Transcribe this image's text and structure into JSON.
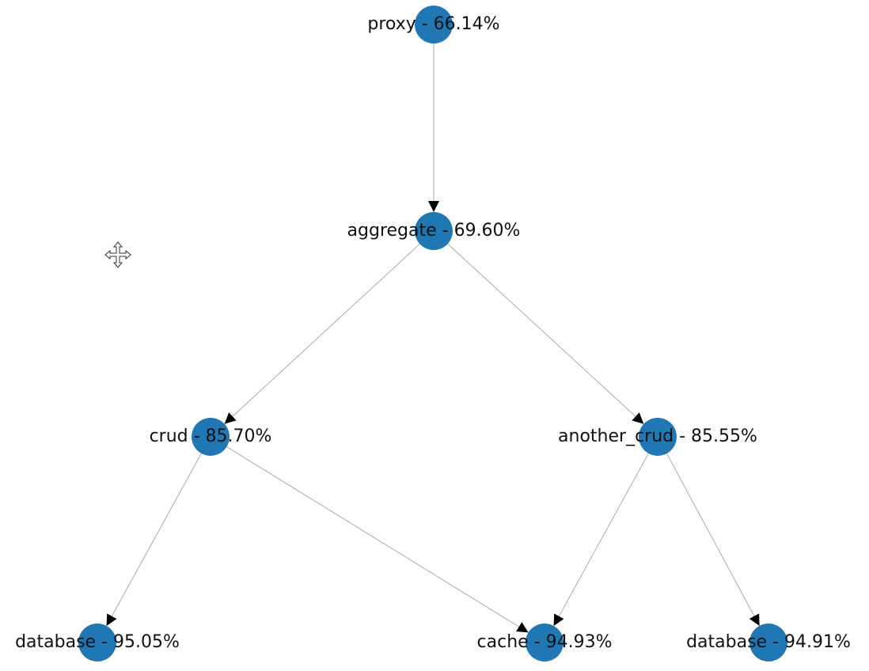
{
  "nodes": [
    {
      "label": "proxy - 66.14%"
    },
    {
      "label": "aggregate - 69.60%"
    },
    {
      "label": "crud - 85.70%"
    },
    {
      "label": "another_crud - 85.55%"
    },
    {
      "label": "database - 95.05%"
    },
    {
      "label": "cache - 94.93%"
    },
    {
      "label": "database - 94.91%"
    }
  ]
}
